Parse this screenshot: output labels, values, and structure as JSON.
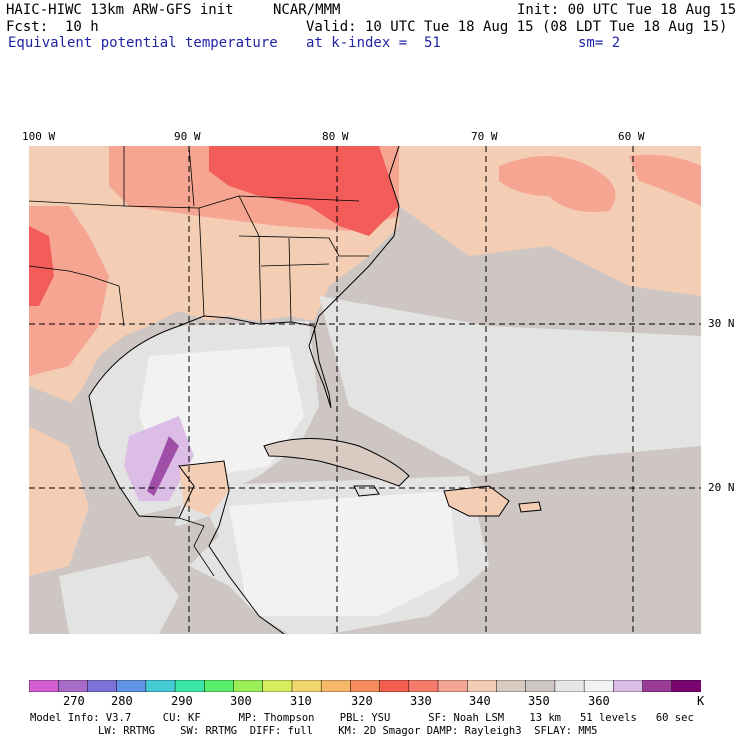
{
  "header": {
    "model": "HAIC-HIWC 13km ARW-GFS init",
    "org": "NCAR/MMM",
    "init": "Init: 00 UTC Tue 18 Aug 15",
    "fcst_label": "Fcst:",
    "fcst_value": "10 h",
    "valid": "Valid: 10 UTC Tue 18 Aug 15 (08 LDT Tue 18 Aug 15)",
    "field": "Equivalent potential temperature",
    "level": "at k-index =  51",
    "smoothing": "sm= 2"
  },
  "map": {
    "lon_labels": [
      "100 W",
      "90 W",
      "80 W",
      "70 W",
      "60 W"
    ],
    "lat_labels": [
      "30 N",
      "20 N"
    ],
    "colors": {
      "warm": "#f59a84",
      "hot": "#f25d5a",
      "tan": "#f3cdb4",
      "gray": "#cdc6c3",
      "lightgray": "#e3e3e3",
      "white": "#f2f2f2",
      "lilac": "#dcbde6",
      "purple": "#a04fa8"
    }
  },
  "colorbar": {
    "unit": "K",
    "tick_labels": [
      "270",
      "280",
      "290",
      "300",
      "310",
      "320",
      "330",
      "340",
      "350",
      "360"
    ],
    "colors": [
      "#d35fd0",
      "#a86bc8",
      "#7c72d9",
      "#5f93e6",
      "#45c9d4",
      "#3be7a6",
      "#59ef6c",
      "#9cee58",
      "#d9ee5d",
      "#f1d670",
      "#f6b96a",
      "#f48c5c",
      "#f25d4e",
      "#f47a6a",
      "#f6a593",
      "#f3cdb4",
      "#d9cbc2",
      "#cdc6c3",
      "#e6e6e6",
      "#f3f3f3",
      "#dcbde6",
      "#9b3b98",
      "#7a0570"
    ]
  },
  "footer": {
    "line1": "Model Info: V3.7     CU: KF      MP: Thompson    PBL: YSU      SF: Noah LSM    13 km   51 levels   60 sec",
    "line2": "LW: RRTMG    SW: RRTMG  DIFF: full    KM: 2D Smagor DAMP: Rayleigh3  SFLAY: MM5"
  }
}
